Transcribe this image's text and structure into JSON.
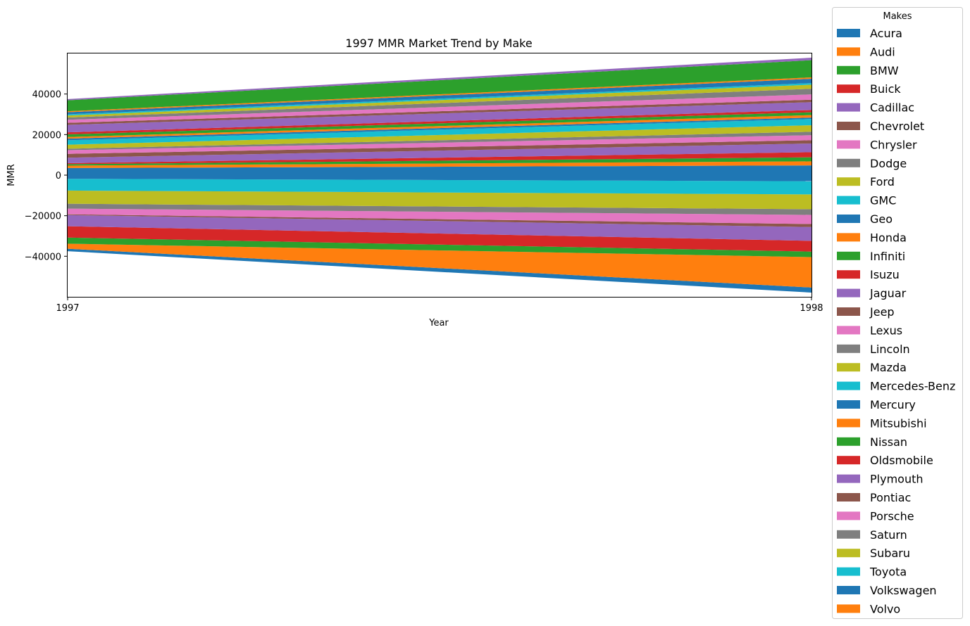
{
  "chart_data": {
    "type": "area",
    "title": "1997 MMR Market Trend by Make",
    "xlabel": "Year",
    "ylabel": "MMR",
    "x": [
      1997,
      1998
    ],
    "x_ticks": [
      "1997",
      "1998"
    ],
    "y_ticks": [
      -40000,
      -20000,
      0,
      20000,
      40000
    ],
    "ylim": [
      -60000,
      60000
    ],
    "baseline": "symmetric",
    "grid": false,
    "legend": {
      "title": "Makes",
      "placement": "right"
    },
    "series": [
      {
        "name": "Acura",
        "color": "#1f77b4",
        "values": [
          1200,
          2500
        ]
      },
      {
        "name": "Audi",
        "color": "#ff7f0e",
        "values": [
          2500,
          15000
        ]
      },
      {
        "name": "BMW",
        "color": "#2ca02c",
        "values": [
          3000,
          2700
        ]
      },
      {
        "name": "Buick",
        "color": "#d62728",
        "values": [
          5600,
          5300
        ]
      },
      {
        "name": "Cadillac",
        "color": "#9467bd",
        "values": [
          5500,
          6800
        ]
      },
      {
        "name": "Chevrolet",
        "color": "#8c564b",
        "values": [
          400,
          1500
        ]
      },
      {
        "name": "Chrysler",
        "color": "#e377c2",
        "values": [
          2800,
          4500
        ]
      },
      {
        "name": "Dodge",
        "color": "#7f7f7f",
        "values": [
          2400,
          2800
        ]
      },
      {
        "name": "Ford",
        "color": "#bcbd22",
        "values": [
          6500,
          7300
        ]
      },
      {
        "name": "GMC",
        "color": "#17becf",
        "values": [
          5800,
          6500
        ]
      },
      {
        "name": "Geo",
        "color": "#1f77b4",
        "values": [
          5300,
          7800
        ]
      },
      {
        "name": "Honda",
        "color": "#ff7f0e",
        "values": [
          1200,
          2000
        ]
      },
      {
        "name": "Infiniti",
        "color": "#2ca02c",
        "values": [
          700,
          2000
        ]
      },
      {
        "name": "Isuzu",
        "color": "#d62728",
        "values": [
          500,
          2500
        ]
      },
      {
        "name": "Jaguar",
        "color": "#9467bd",
        "values": [
          2700,
          4300
        ]
      },
      {
        "name": "Jeep",
        "color": "#8c564b",
        "values": [
          1900,
          1600
        ]
      },
      {
        "name": "Lexus",
        "color": "#e377c2",
        "values": [
          1800,
          2500
        ]
      },
      {
        "name": "Lincoln",
        "color": "#7f7f7f",
        "values": [
          700,
          1700
        ]
      },
      {
        "name": "Mazda",
        "color": "#bcbd22",
        "values": [
          2000,
          3200
        ]
      },
      {
        "name": "Mercedes-Benz",
        "color": "#17becf",
        "values": [
          2200,
          3100
        ]
      },
      {
        "name": "Mercury",
        "color": "#1f77b4",
        "values": [
          800,
          700
        ]
      },
      {
        "name": "Mitsubishi",
        "color": "#ff7f0e",
        "values": [
          800,
          1200
        ]
      },
      {
        "name": "Nissan",
        "color": "#2ca02c",
        "values": [
          1300,
          1400
        ]
      },
      {
        "name": "Oldsmobile",
        "color": "#d62728",
        "values": [
          1000,
          1100
        ]
      },
      {
        "name": "Plymouth",
        "color": "#9467bd",
        "values": [
          3700,
          3900
        ]
      },
      {
        "name": "Pontiac",
        "color": "#8c564b",
        "values": [
          1000,
          1200
        ]
      },
      {
        "name": "Porsche",
        "color": "#e377c2",
        "values": [
          1500,
          2600
        ]
      },
      {
        "name": "Saturn",
        "color": "#7f7f7f",
        "values": [
          1100,
          2800
        ]
      },
      {
        "name": "Subaru",
        "color": "#bcbd22",
        "values": [
          1000,
          2000
        ]
      },
      {
        "name": "Toyota",
        "color": "#17becf",
        "values": [
          600,
          800
        ]
      },
      {
        "name": "Volkswagen",
        "color": "#1f77b4",
        "values": [
          1000,
          2100
        ]
      },
      {
        "name": "Volvo",
        "color": "#ff7f0e",
        "values": [
          500,
          700
        ]
      },
      {
        "name": "",
        "color": "#2ca02c",
        "values": [
          5400,
          8500
        ]
      },
      {
        "name": "",
        "color": "#9467bd",
        "values": [
          600,
          1200
        ]
      }
    ]
  }
}
